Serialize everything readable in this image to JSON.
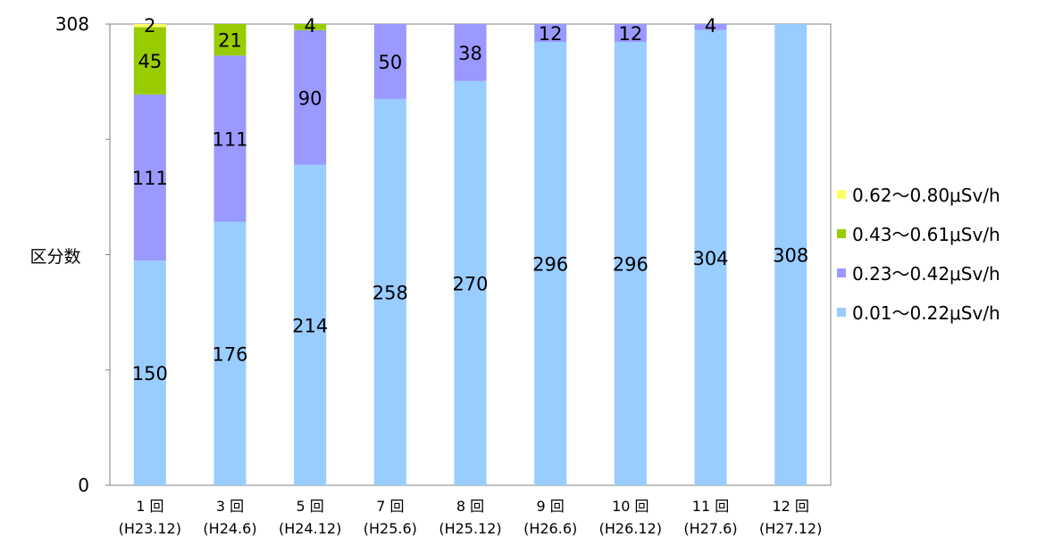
{
  "chart_data": {
    "type": "bar",
    "stacked": true,
    "ylabel": "区分数",
    "xlabel": "",
    "ylim": [
      0,
      308
    ],
    "y_ticks": [
      0,
      308
    ],
    "categories": [
      [
        "1 回",
        "(H23.12)"
      ],
      [
        "3 回",
        "(H24.6)"
      ],
      [
        "5 回",
        "(H24.12)"
      ],
      [
        "7 回",
        "(H25.6)"
      ],
      [
        "8 回",
        "(H25.12)"
      ],
      [
        "9 回",
        "(H26.6)"
      ],
      [
        "10 回",
        "(H26.12)"
      ],
      [
        "11 回",
        "(H27.6)"
      ],
      [
        "12 回",
        "(H27.12)"
      ]
    ],
    "series": [
      {
        "name": "0.01～0.22μSv/h",
        "color": "#99ccff",
        "values": [
          150,
          176,
          214,
          258,
          270,
          296,
          296,
          304,
          308
        ]
      },
      {
        "name": "0.23～0.42μSv/h",
        "color": "#9999ff",
        "values": [
          111,
          111,
          90,
          50,
          38,
          12,
          12,
          4,
          0
        ]
      },
      {
        "name": "0.43～0.61μSv/h",
        "color": "#99cc00",
        "values": [
          45,
          21,
          4,
          0,
          0,
          0,
          0,
          0,
          0
        ]
      },
      {
        "name": "0.62～0.80μSv/h",
        "color": "#ffff66",
        "values": [
          2,
          0,
          0,
          0,
          0,
          0,
          0,
          0,
          0
        ]
      }
    ],
    "legend_position": "right",
    "grid": false
  }
}
